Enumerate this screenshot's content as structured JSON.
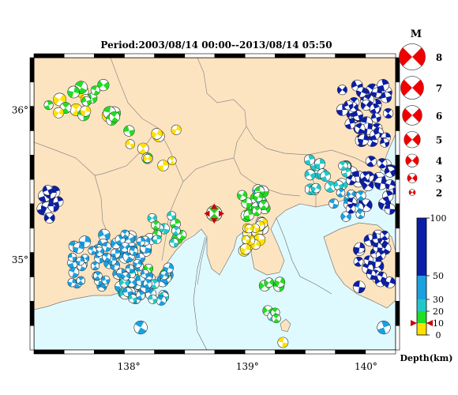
{
  "title": "Period:2003/08/14 00:00--2013/08/14 05:50",
  "map": {
    "lat_ticks": [
      {
        "value": 36,
        "label": "36°"
      },
      {
        "value": 35,
        "label": "35°"
      }
    ],
    "lon_ticks": [
      {
        "value": 138,
        "label": "138°"
      },
      {
        "value": 139,
        "label": "139°"
      },
      {
        "value": 140,
        "label": "140°"
      }
    ],
    "lon_range": [
      137.2,
      140.25
    ],
    "lat_range": [
      34.4,
      36.35
    ],
    "land_color": "#fde4c0",
    "sea_color": "#dffaff",
    "mainshock": {
      "lon": 138.72,
      "lat": 35.31,
      "magnitude": 5,
      "depth_km": 10
    }
  },
  "magnitude_legend": {
    "title": "M",
    "items": [
      {
        "label": "8",
        "m": 8
      },
      {
        "label": "7",
        "m": 7
      },
      {
        "label": "6",
        "m": 6
      },
      {
        "label": "5",
        "m": 5
      },
      {
        "label": "4",
        "m": 4
      },
      {
        "label": "3",
        "m": 3
      },
      {
        "label": "2",
        "m": 2
      }
    ]
  },
  "depth_scale": {
    "title": "Depth(km)",
    "ticks": [
      {
        "value": 100,
        "label": "100"
      },
      {
        "value": 50,
        "label": "50"
      },
      {
        "value": 30,
        "label": "30"
      },
      {
        "value": 20,
        "label": "20"
      },
      {
        "value": 10,
        "label": "10"
      },
      {
        "value": 0,
        "label": "0"
      }
    ],
    "bands": [
      {
        "from": 0,
        "to": 10,
        "color": "#ffe100"
      },
      {
        "from": 10,
        "to": 20,
        "color": "#22dd22"
      },
      {
        "from": 20,
        "to": 30,
        "color": "#22c8c8"
      },
      {
        "from": 30,
        "to": 50,
        "color": "#1ba0e0"
      },
      {
        "from": 50,
        "to": 100,
        "color": "#0a1ea8"
      }
    ],
    "marker_depth": 10,
    "marker_color": "#cc0000"
  }
}
